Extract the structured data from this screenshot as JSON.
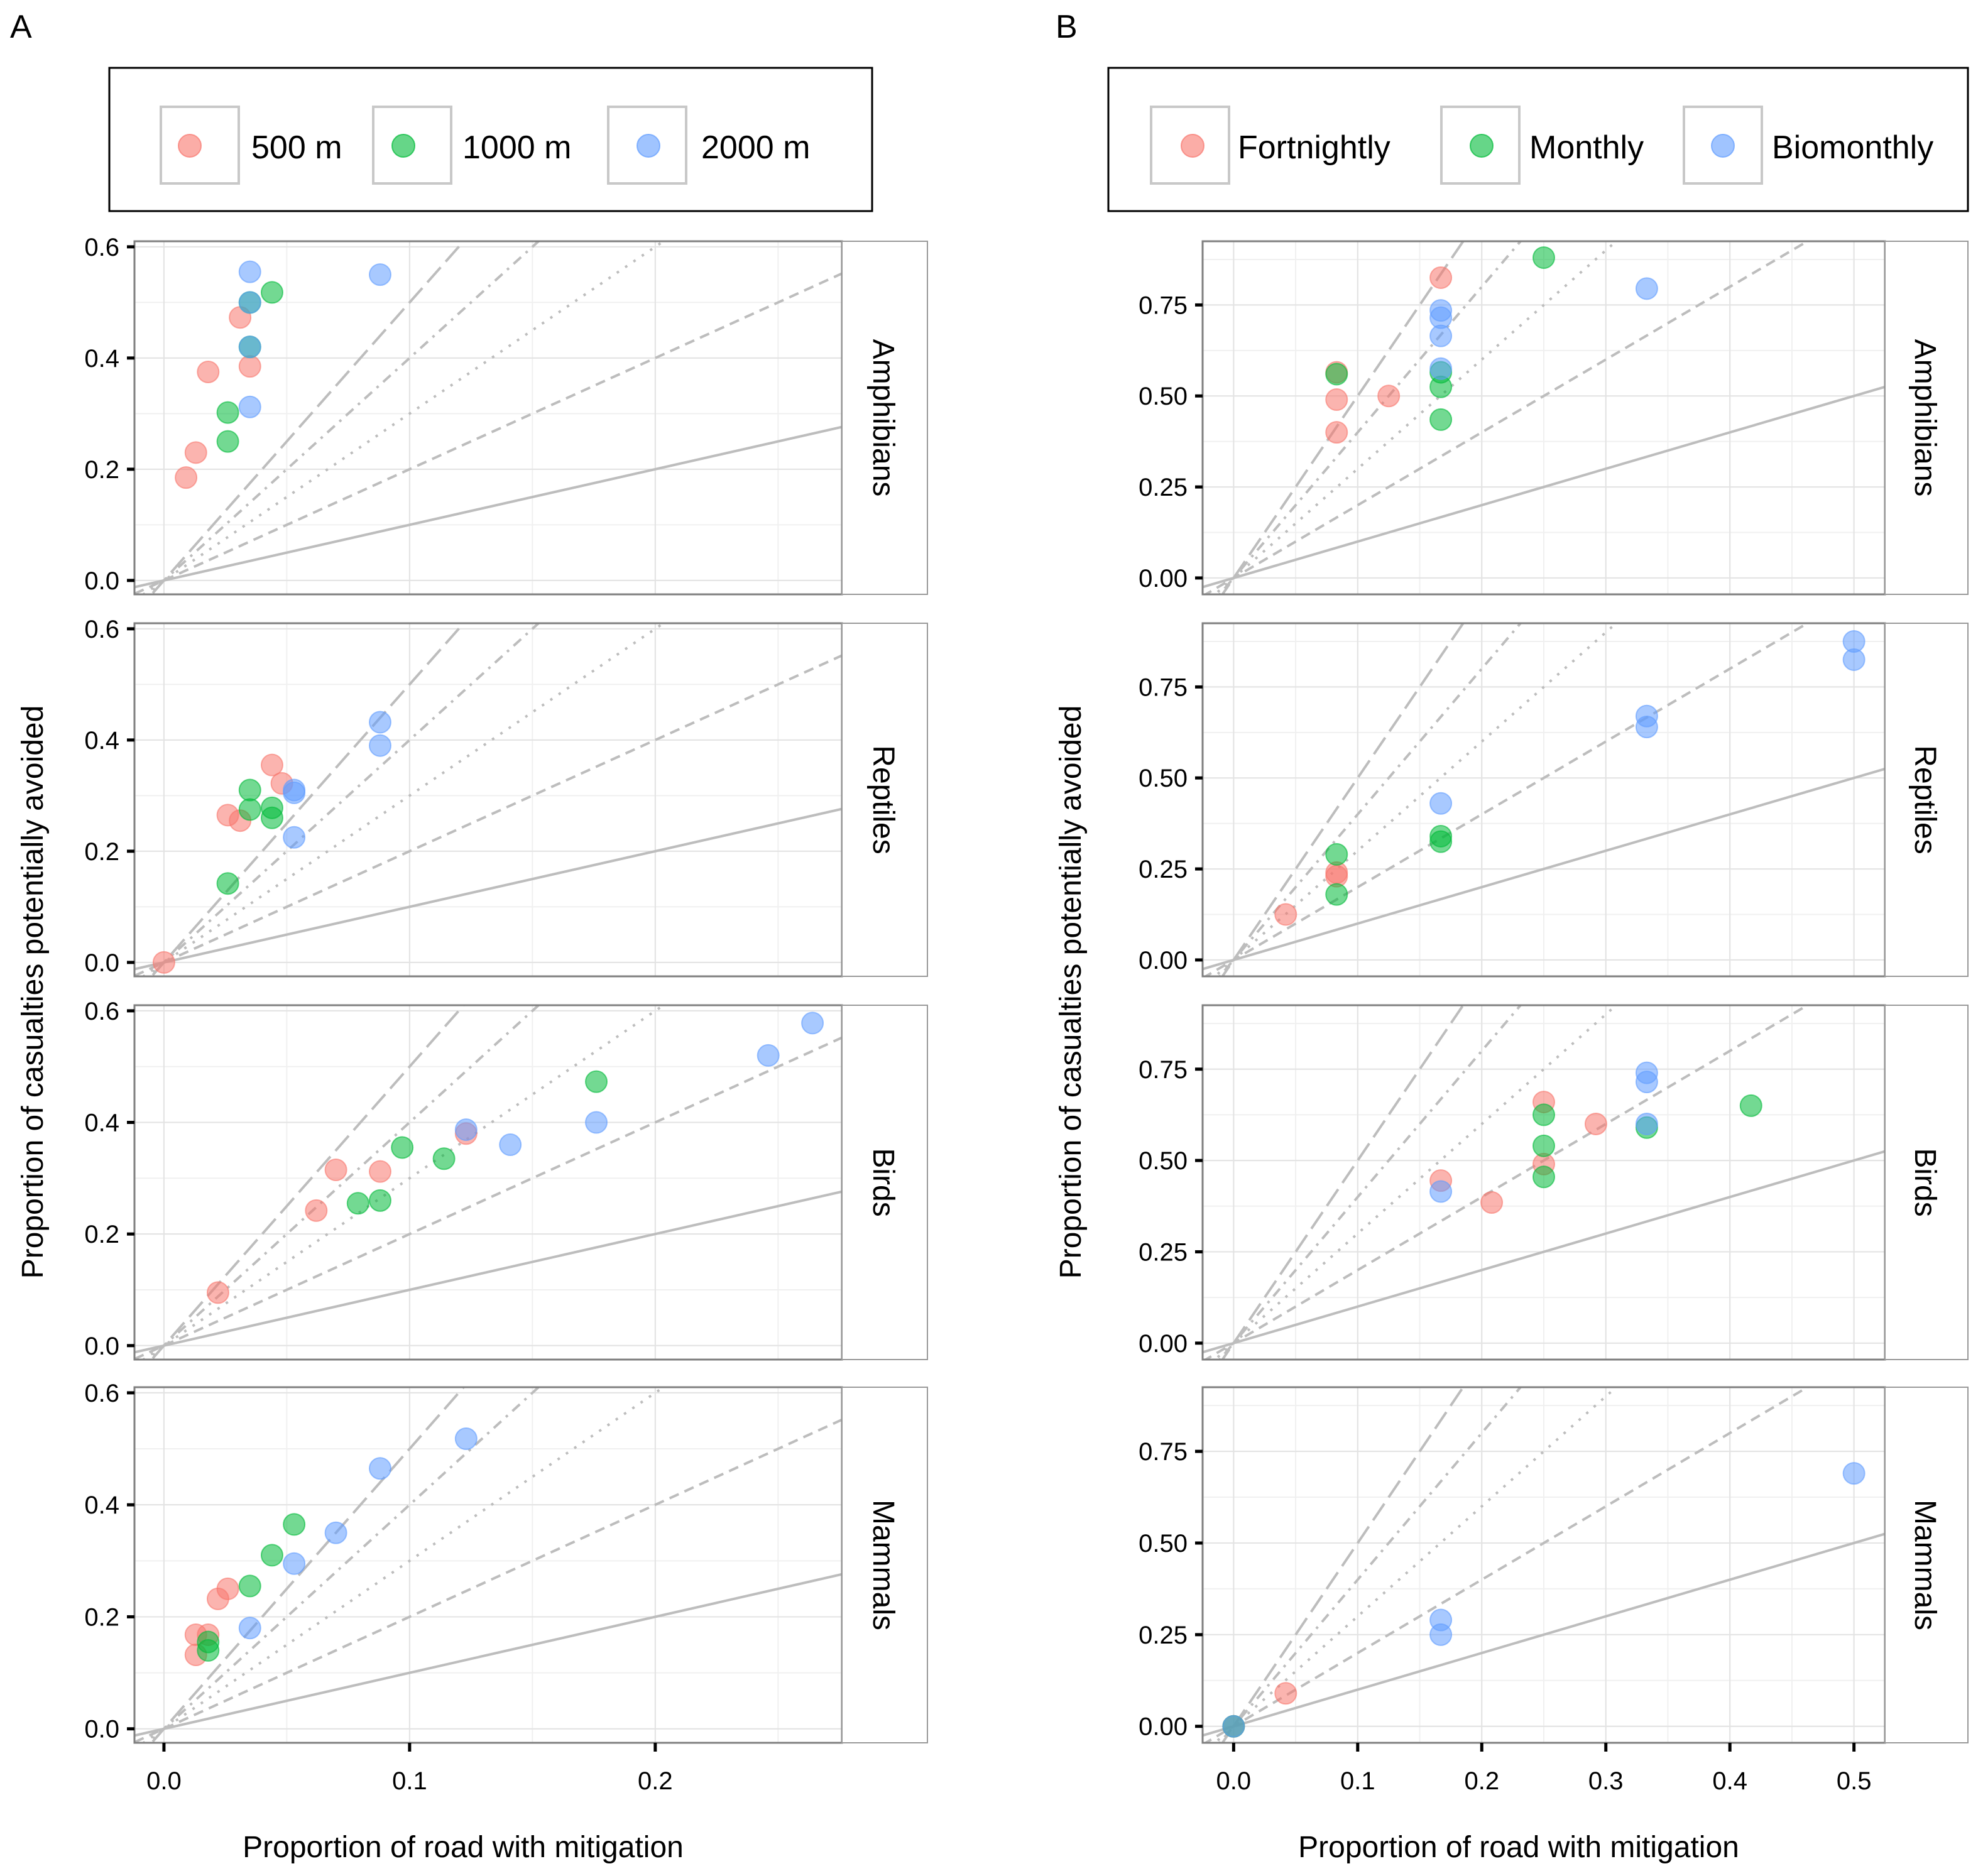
{
  "chart_data": [
    {
      "panel_label": "A",
      "type": "scatter",
      "xlabel": "Proportion of road with mitigation",
      "ylabel": "Proportion of casualties potentially avoided",
      "xlim": [
        -0.012,
        0.276
      ],
      "ylim": [
        -0.025,
        0.61
      ],
      "xticks": [
        0.0,
        0.1,
        0.2
      ],
      "xtick_labels": [
        "0.0",
        "0.1",
        "0.2"
      ],
      "yticks": [
        0.0,
        0.2,
        0.4,
        0.6
      ],
      "ytick_labels": [
        "0.0",
        "0.2",
        "0.4",
        "0.6"
      ],
      "grid": true,
      "legend": {
        "placement": "top",
        "entries": [
          {
            "name": "500 m",
            "color": "#F8766D"
          },
          {
            "name": "1000 m",
            "color": "#00BA38"
          },
          {
            "name": "2000 m",
            "color": "#619CFF"
          }
        ]
      },
      "reference_lines": [
        {
          "slope": 1,
          "style": "solid"
        },
        {
          "slope": 2,
          "style": "dashed"
        },
        {
          "slope": 3,
          "style": "dotted"
        },
        {
          "slope": 4,
          "style": "dotdash"
        },
        {
          "slope": 5,
          "style": "longdash"
        }
      ],
      "facets": [
        {
          "name": "Amphibians",
          "series": [
            {
              "name": "500 m",
              "points": [
                [
                  0.009,
                  0.185
                ],
                [
                  0.013,
                  0.23
                ],
                [
                  0.018,
                  0.375
                ],
                [
                  0.031,
                  0.473
                ],
                [
                  0.035,
                  0.385
                ]
              ]
            },
            {
              "name": "1000 m",
              "points": [
                [
                  0.026,
                  0.25
                ],
                [
                  0.026,
                  0.302
                ],
                [
                  0.035,
                  0.5
                ],
                [
                  0.035,
                  0.42
                ],
                [
                  0.044,
                  0.518
                ]
              ]
            },
            {
              "name": "2000 m",
              "points": [
                [
                  0.035,
                  0.555
                ],
                [
                  0.035,
                  0.5
                ],
                [
                  0.035,
                  0.42
                ],
                [
                  0.035,
                  0.312
                ],
                [
                  0.088,
                  0.55
                ]
              ]
            }
          ]
        },
        {
          "name": "Reptiles",
          "series": [
            {
              "name": "500 m",
              "points": [
                [
                  0.0,
                  0.0
                ],
                [
                  0.026,
                  0.265
                ],
                [
                  0.031,
                  0.255
                ],
                [
                  0.044,
                  0.355
                ],
                [
                  0.048,
                  0.322
                ]
              ]
            },
            {
              "name": "1000 m",
              "points": [
                [
                  0.026,
                  0.142
                ],
                [
                  0.035,
                  0.275
                ],
                [
                  0.035,
                  0.31
                ],
                [
                  0.044,
                  0.278
                ],
                [
                  0.044,
                  0.26
                ]
              ]
            },
            {
              "name": "2000 m",
              "points": [
                [
                  0.053,
                  0.225
                ],
                [
                  0.053,
                  0.305
                ],
                [
                  0.053,
                  0.31
                ],
                [
                  0.088,
                  0.39
                ],
                [
                  0.088,
                  0.432
                ]
              ]
            }
          ]
        },
        {
          "name": "Birds",
          "series": [
            {
              "name": "500 m",
              "points": [
                [
                  0.022,
                  0.095
                ],
                [
                  0.062,
                  0.242
                ],
                [
                  0.07,
                  0.315
                ],
                [
                  0.088,
                  0.312
                ],
                [
                  0.123,
                  0.38
                ]
              ]
            },
            {
              "name": "1000 m",
              "points": [
                [
                  0.079,
                  0.255
                ],
                [
                  0.088,
                  0.26
                ],
                [
                  0.097,
                  0.355
                ],
                [
                  0.114,
                  0.335
                ],
                [
                  0.176,
                  0.473
                ]
              ]
            },
            {
              "name": "2000 m",
              "points": [
                [
                  0.123,
                  0.387
                ],
                [
                  0.141,
                  0.36
                ],
                [
                  0.176,
                  0.4
                ],
                [
                  0.246,
                  0.52
                ],
                [
                  0.264,
                  0.578
                ]
              ]
            }
          ]
        },
        {
          "name": "Mammals",
          "series": [
            {
              "name": "500 m",
              "points": [
                [
                  0.013,
                  0.168
                ],
                [
                  0.013,
                  0.132
                ],
                [
                  0.018,
                  0.168
                ],
                [
                  0.022,
                  0.232
                ],
                [
                  0.026,
                  0.25
                ]
              ]
            },
            {
              "name": "1000 m",
              "points": [
                [
                  0.018,
                  0.155
                ],
                [
                  0.018,
                  0.14
                ],
                [
                  0.035,
                  0.255
                ],
                [
                  0.044,
                  0.31
                ],
                [
                  0.053,
                  0.365
                ]
              ]
            },
            {
              "name": "2000 m",
              "points": [
                [
                  0.035,
                  0.18
                ],
                [
                  0.053,
                  0.295
                ],
                [
                  0.07,
                  0.35
                ],
                [
                  0.088,
                  0.465
                ],
                [
                  0.123,
                  0.518
                ]
              ]
            }
          ]
        }
      ]
    },
    {
      "panel_label": "B",
      "type": "scatter",
      "xlabel": "Proportion of road with mitigation",
      "ylabel": "Proportion of casualties potentially avoided",
      "xlim": [
        -0.025,
        0.525
      ],
      "ylim": [
        -0.045,
        0.925
      ],
      "xticks": [
        0.0,
        0.1,
        0.2,
        0.3,
        0.4,
        0.5
      ],
      "xtick_labels": [
        "0.0",
        "0.1",
        "0.2",
        "0.3",
        "0.4",
        "0.5"
      ],
      "yticks": [
        0.0,
        0.25,
        0.5,
        0.75
      ],
      "ytick_labels": [
        "0.00",
        "0.25",
        "0.50",
        "0.75"
      ],
      "grid": true,
      "legend": {
        "placement": "top",
        "entries": [
          {
            "name": "Fortnightly",
            "color": "#F8766D"
          },
          {
            "name": "Monthly",
            "color": "#00BA38"
          },
          {
            "name": "Biomonthly",
            "color": "#619CFF"
          }
        ]
      },
      "reference_lines": [
        {
          "slope": 1,
          "style": "solid"
        },
        {
          "slope": 2,
          "style": "dashed"
        },
        {
          "slope": 3,
          "style": "dotted"
        },
        {
          "slope": 4,
          "style": "dotdash"
        },
        {
          "slope": 5,
          "style": "longdash"
        }
      ],
      "facets": [
        {
          "name": "Amphibians",
          "series": [
            {
              "name": "Fortnightly",
              "points": [
                [
                  0.083,
                  0.4
                ],
                [
                  0.083,
                  0.49
                ],
                [
                  0.083,
                  0.565
                ],
                [
                  0.125,
                  0.5
                ],
                [
                  0.167,
                  0.825
                ]
              ]
            },
            {
              "name": "Monthly",
              "points": [
                [
                  0.083,
                  0.56
                ],
                [
                  0.167,
                  0.435
                ],
                [
                  0.167,
                  0.525
                ],
                [
                  0.167,
                  0.565
                ],
                [
                  0.25,
                  0.88
                ]
              ]
            },
            {
              "name": "Biomonthly",
              "points": [
                [
                  0.167,
                  0.575
                ],
                [
                  0.167,
                  0.665
                ],
                [
                  0.167,
                  0.715
                ],
                [
                  0.167,
                  0.735
                ],
                [
                  0.333,
                  0.795
                ]
              ]
            }
          ]
        },
        {
          "name": "Reptiles",
          "series": [
            {
              "name": "Fortnightly",
              "points": [
                [
                  0.042,
                  0.125
                ],
                [
                  0.083,
                  0.23
                ],
                [
                  0.083,
                  0.24
                ]
              ]
            },
            {
              "name": "Monthly",
              "points": [
                [
                  0.083,
                  0.18
                ],
                [
                  0.083,
                  0.29
                ],
                [
                  0.167,
                  0.325
                ],
                [
                  0.167,
                  0.34
                ]
              ]
            },
            {
              "name": "Biomonthly",
              "points": [
                [
                  0.167,
                  0.43
                ],
                [
                  0.333,
                  0.64
                ],
                [
                  0.333,
                  0.67
                ],
                [
                  0.5,
                  0.825
                ],
                [
                  0.5,
                  0.875
                ]
              ]
            }
          ]
        },
        {
          "name": "Birds",
          "series": [
            {
              "name": "Fortnightly",
              "points": [
                [
                  0.167,
                  0.445
                ],
                [
                  0.208,
                  0.385
                ],
                [
                  0.25,
                  0.49
                ],
                [
                  0.25,
                  0.66
                ],
                [
                  0.292,
                  0.6
                ]
              ]
            },
            {
              "name": "Monthly",
              "points": [
                [
                  0.25,
                  0.455
                ],
                [
                  0.25,
                  0.54
                ],
                [
                  0.25,
                  0.625
                ],
                [
                  0.333,
                  0.59
                ],
                [
                  0.417,
                  0.65
                ]
              ]
            },
            {
              "name": "Biomonthly",
              "points": [
                [
                  0.167,
                  0.415
                ],
                [
                  0.333,
                  0.6
                ],
                [
                  0.333,
                  0.715
                ],
                [
                  0.333,
                  0.74
                ]
              ]
            }
          ]
        },
        {
          "name": "Mammals",
          "series": [
            {
              "name": "Fortnightly",
              "points": [
                [
                  0.0,
                  0.0
                ],
                [
                  0.042,
                  0.09
                ]
              ]
            },
            {
              "name": "Monthly",
              "points": [
                [
                  0.0,
                  0.0
                ]
              ]
            },
            {
              "name": "Biomonthly",
              "points": [
                [
                  0.0,
                  0.0
                ],
                [
                  0.167,
                  0.25
                ],
                [
                  0.167,
                  0.29
                ],
                [
                  0.5,
                  0.69
                ]
              ]
            }
          ]
        }
      ]
    }
  ]
}
